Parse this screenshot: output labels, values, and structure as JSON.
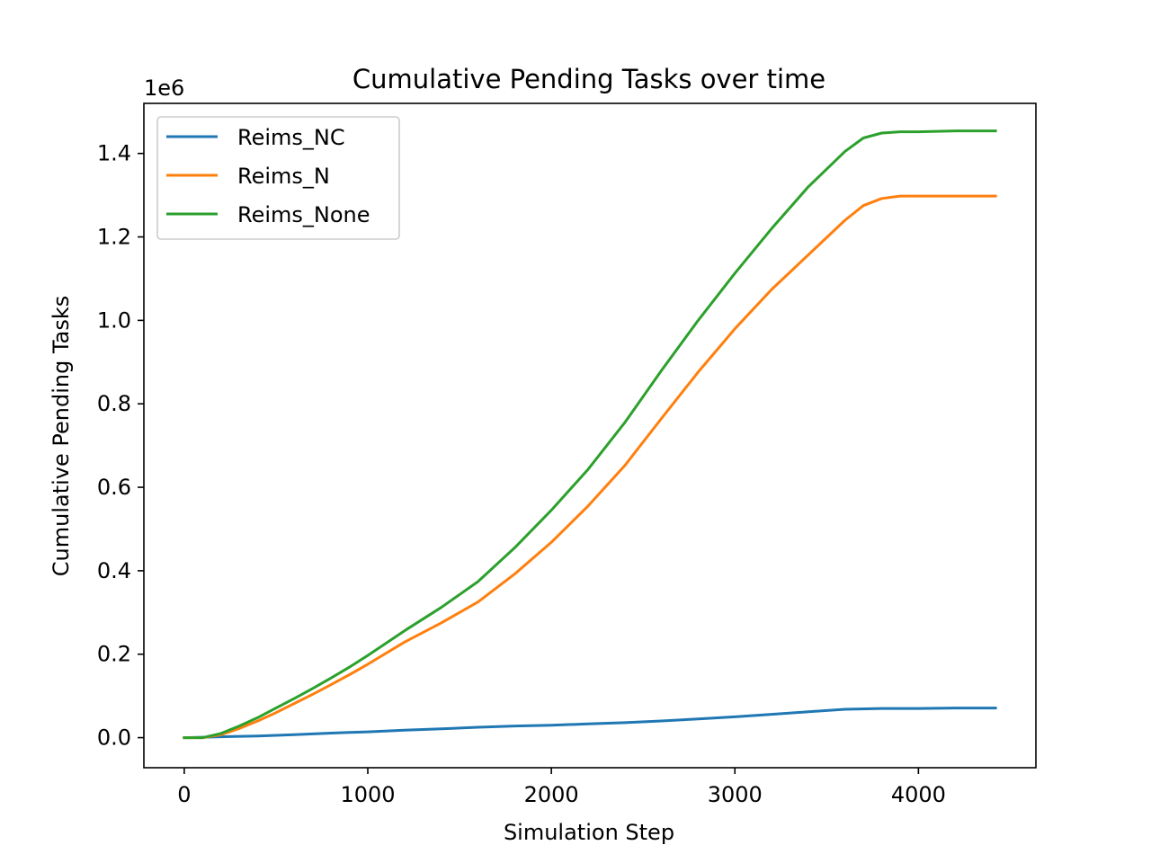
{
  "chart_data": {
    "type": "line",
    "title": "Cumulative Pending Tasks over time",
    "xlabel": "Simulation Step",
    "ylabel": "Cumulative Pending Tasks",
    "y_offset_label": "1e6",
    "xlim": [
      -220,
      4640
    ],
    "ylim": [
      -0.072,
      1.52
    ],
    "y_scale_factor": 1000000,
    "xticks": [
      0,
      1000,
      2000,
      3000,
      4000
    ],
    "xtick_labels": [
      "0",
      "1000",
      "2000",
      "3000",
      "4000"
    ],
    "yticks": [
      0.0,
      0.2,
      0.4,
      0.6,
      0.8,
      1.0,
      1.2,
      1.4
    ],
    "ytick_labels": [
      "0.0",
      "0.2",
      "0.4",
      "0.6",
      "0.8",
      "1.0",
      "1.2",
      "1.4"
    ],
    "grid": false,
    "legend_position": "upper-left",
    "series": [
      {
        "name": "Reims_NC",
        "color": "#1f77b4",
        "points": [
          [
            0,
            0
          ],
          [
            200,
            0.002
          ],
          [
            400,
            0.004
          ],
          [
            600,
            0.007
          ],
          [
            800,
            0.011
          ],
          [
            1000,
            0.014
          ],
          [
            1200,
            0.018
          ],
          [
            1400,
            0.021
          ],
          [
            1600,
            0.025
          ],
          [
            1800,
            0.028
          ],
          [
            2000,
            0.03
          ],
          [
            2200,
            0.033
          ],
          [
            2400,
            0.036
          ],
          [
            2600,
            0.04
          ],
          [
            2800,
            0.045
          ],
          [
            3000,
            0.05
          ],
          [
            3200,
            0.056
          ],
          [
            3400,
            0.062
          ],
          [
            3600,
            0.068
          ],
          [
            3800,
            0.07
          ],
          [
            4000,
            0.07
          ],
          [
            4200,
            0.071
          ],
          [
            4420,
            0.071
          ]
        ]
      },
      {
        "name": "Reims_N",
        "color": "#ff7f0e",
        "points": [
          [
            0,
            0
          ],
          [
            100,
            0.0
          ],
          [
            200,
            0.007
          ],
          [
            300,
            0.022
          ],
          [
            400,
            0.04
          ],
          [
            500,
            0.06
          ],
          [
            600,
            0.082
          ],
          [
            700,
            0.104
          ],
          [
            800,
            0.127
          ],
          [
            900,
            0.151
          ],
          [
            1000,
            0.176
          ],
          [
            1200,
            0.229
          ],
          [
            1400,
            0.275
          ],
          [
            1600,
            0.325
          ],
          [
            1800,
            0.392
          ],
          [
            2000,
            0.468
          ],
          [
            2200,
            0.555
          ],
          [
            2400,
            0.652
          ],
          [
            2600,
            0.765
          ],
          [
            2800,
            0.876
          ],
          [
            3000,
            0.98
          ],
          [
            3200,
            1.074
          ],
          [
            3400,
            1.157
          ],
          [
            3600,
            1.24
          ],
          [
            3700,
            1.275
          ],
          [
            3800,
            1.292
          ],
          [
            3900,
            1.298
          ],
          [
            4000,
            1.298
          ],
          [
            4200,
            1.298
          ],
          [
            4420,
            1.298
          ]
        ]
      },
      {
        "name": "Reims_None",
        "color": "#2ca02c",
        "points": [
          [
            0,
            0
          ],
          [
            100,
            0.0
          ],
          [
            200,
            0.01
          ],
          [
            300,
            0.028
          ],
          [
            400,
            0.048
          ],
          [
            500,
            0.071
          ],
          [
            600,
            0.094
          ],
          [
            700,
            0.118
          ],
          [
            800,
            0.143
          ],
          [
            900,
            0.169
          ],
          [
            1000,
            0.197
          ],
          [
            1200,
            0.256
          ],
          [
            1400,
            0.312
          ],
          [
            1600,
            0.374
          ],
          [
            1800,
            0.455
          ],
          [
            2000,
            0.545
          ],
          [
            2200,
            0.643
          ],
          [
            2400,
            0.755
          ],
          [
            2600,
            0.88
          ],
          [
            2800,
            1.0
          ],
          [
            3000,
            1.113
          ],
          [
            3200,
            1.22
          ],
          [
            3400,
            1.32
          ],
          [
            3600,
            1.405
          ],
          [
            3700,
            1.437
          ],
          [
            3800,
            1.449
          ],
          [
            3900,
            1.452
          ],
          [
            4000,
            1.452
          ],
          [
            4200,
            1.454
          ],
          [
            4420,
            1.454
          ]
        ]
      }
    ]
  }
}
